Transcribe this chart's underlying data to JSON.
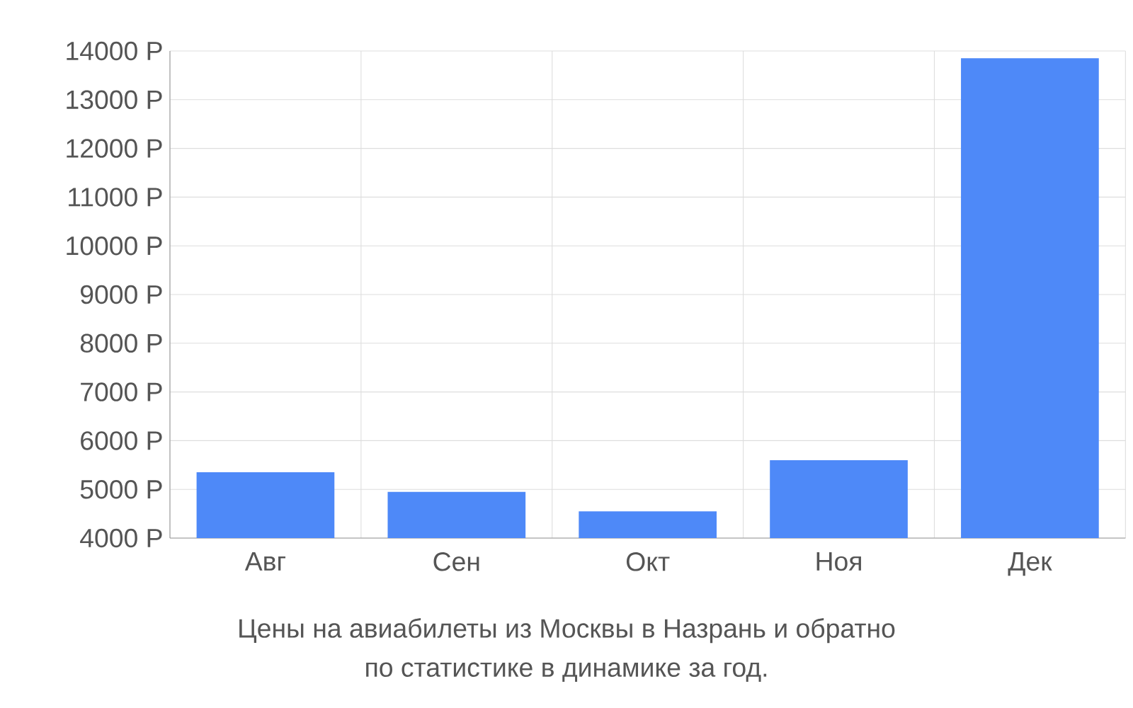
{
  "chart_data": {
    "type": "bar",
    "title": "Цены на авиабилеты из Москвы в Назрань и обратно",
    "subtitle": "по статистике в динамике за год.",
    "categories": [
      "Авг",
      "Сен",
      "Окт",
      "Ноя",
      "Дек"
    ],
    "values": [
      5350,
      4950,
      4550,
      5600,
      13850
    ],
    "color": "#4e89f8",
    "ylim": [
      4000,
      14000
    ],
    "yticks": [
      {
        "value": 4000,
        "label": "4000 Р"
      },
      {
        "value": 5000,
        "label": "5000 Р"
      },
      {
        "value": 6000,
        "label": "6000 Р"
      },
      {
        "value": 7000,
        "label": "7000 Р"
      },
      {
        "value": 8000,
        "label": "8000 Р"
      },
      {
        "value": 9000,
        "label": "9000 Р"
      },
      {
        "value": 10000,
        "label": "10000 Р"
      },
      {
        "value": 11000,
        "label": "11000 Р"
      },
      {
        "value": 12000,
        "label": "12000 Р"
      },
      {
        "value": 13000,
        "label": "13000 Р"
      },
      {
        "value": 14000,
        "label": "14000 Р"
      }
    ],
    "grid": true
  }
}
